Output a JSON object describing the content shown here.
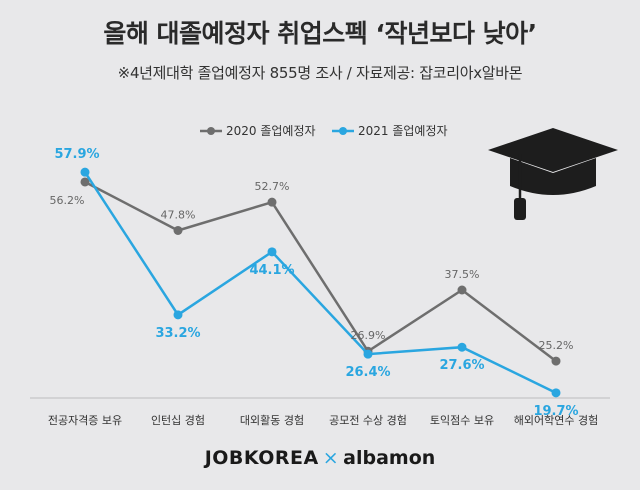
{
  "header": {
    "title": "올해 대졸예정자 취업스펙 ‘작년보다 낮아’",
    "subtitle": "※4년제대학 졸업예정자 855명 조사 / 자료제공: 잡코리아x알바몬"
  },
  "footer": {
    "brand_left": "JOBKOREA",
    "separator": "×",
    "brand_right": "albamon"
  },
  "icons": {
    "decoration": "graduation-cap-icon"
  },
  "colors": {
    "series_2020": "#6e6e6e",
    "series_2021": "#2aa6e0",
    "background": "#e8e8ea"
  },
  "chart_data": {
    "type": "line",
    "categories": [
      "전공자격증 보유",
      "인턴십 경험",
      "대외활동 경험",
      "공모전 수상 경험",
      "토익점수 보유",
      "해외어학연수 경험"
    ],
    "series": [
      {
        "name": "2020 졸업예정자",
        "values": [
          56.2,
          47.8,
          52.7,
          26.9,
          37.5,
          25.2
        ],
        "labels": [
          "56.2%",
          "47.8%",
          "52.7%",
          "26.9%",
          "37.5%",
          "25.2%"
        ],
        "color": "#6e6e6e"
      },
      {
        "name": "2021 졸업예정자",
        "values": [
          57.9,
          33.2,
          44.1,
          26.4,
          27.6,
          19.7
        ],
        "labels": [
          "57.9%",
          "33.2%",
          "44.1%",
          "26.4%",
          "27.6%",
          "19.7%"
        ],
        "color": "#2aa6e0"
      }
    ],
    "ylim": [
      15,
      60
    ],
    "grid": false,
    "legend": "top-center"
  }
}
